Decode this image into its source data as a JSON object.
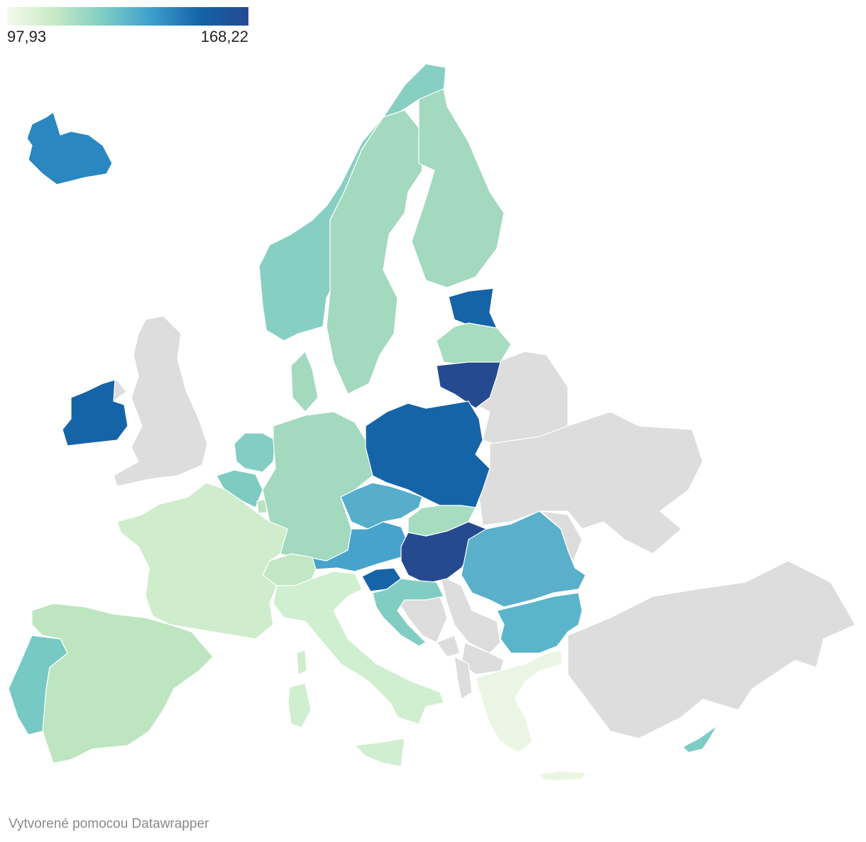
{
  "legend": {
    "min_label": "97,93",
    "max_label": "168,22",
    "gradient": [
      "#f3fbed",
      "#c6e9c3",
      "#7ecdc4",
      "#3d9ecd",
      "#1363a8",
      "#264990"
    ]
  },
  "credit": "Vytvorené pomocou Datawrapper",
  "colors": {
    "no_data": "#dddddd",
    "iceland": "#2a87c0",
    "ireland": "#1664a8",
    "estonia": "#1664a8",
    "poland": "#1664a8",
    "lithuania": "#254a8f",
    "hungary": "#254a8f",
    "slovenia": "#1664a8",
    "austria": "#48a3cc",
    "czechia": "#56aecb",
    "romania": "#5aafcb",
    "bulgaria": "#5ab5cb",
    "norway": "#88cfc3",
    "portugal": "#76c9c4",
    "croatia": "#82cdc3",
    "netherlands": "#84cdc4",
    "belgium": "#7ecbc2",
    "cyprus": "#7ecdc4",
    "latvia": "#a6dcc0",
    "sweden": "#a2d9bf",
    "finland": "#a2d9bf",
    "denmark": "#a2d9bf",
    "germany": "#a2d9bf",
    "slovakia": "#a6dcc0",
    "spain": "#bde6c0",
    "france": "#cfedcc",
    "italy": "#d0eed0",
    "switzerland": "#c3e7c4",
    "luxembourg": "#b8e3c0",
    "greece": "#eaf6e3"
  }
}
